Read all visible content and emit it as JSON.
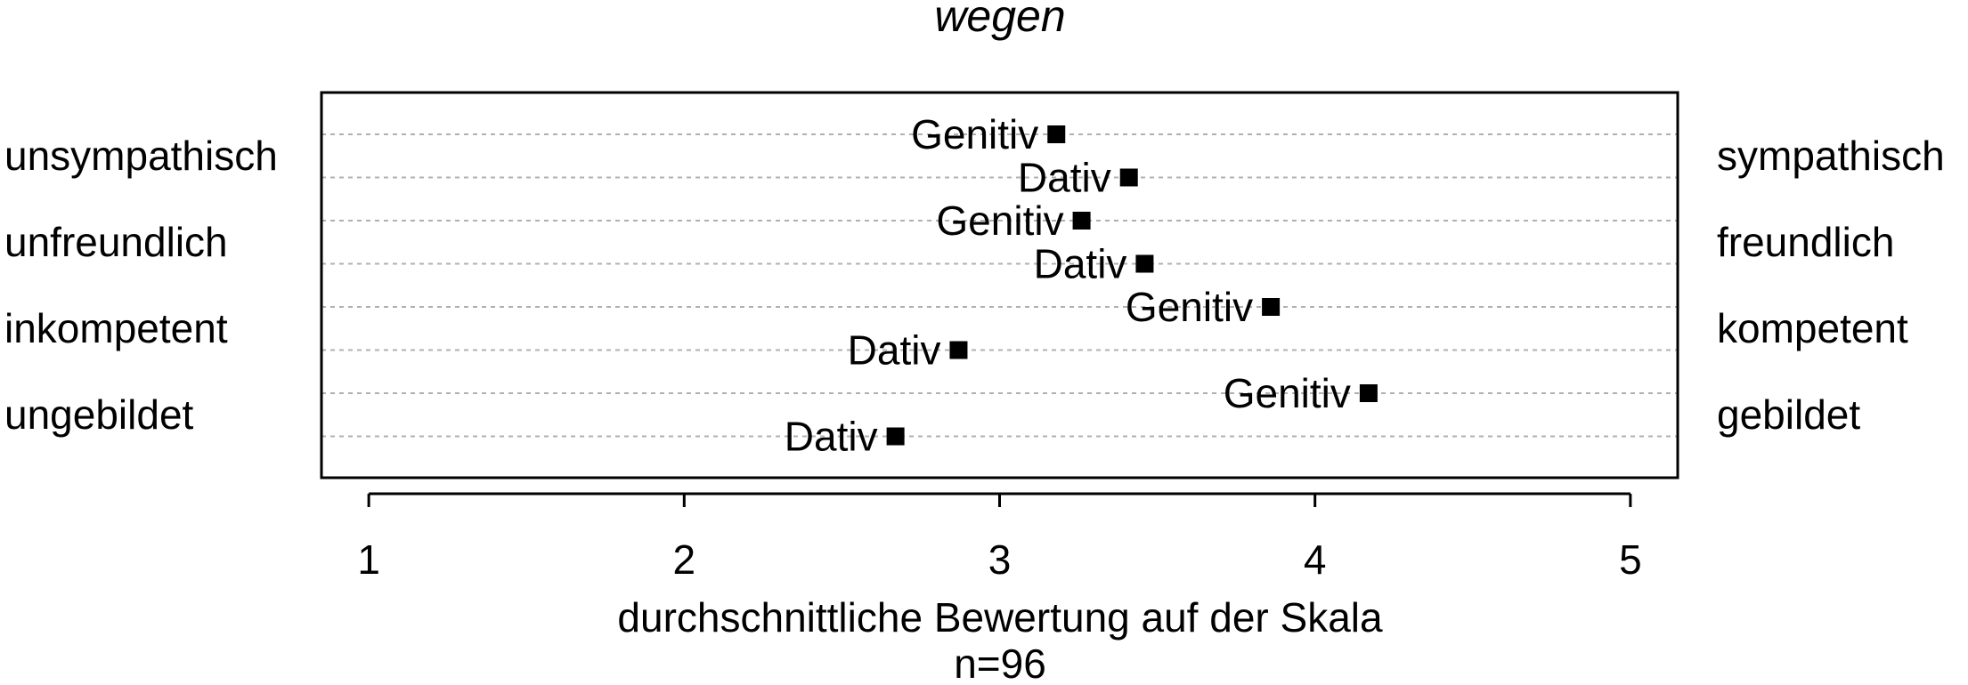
{
  "chart_data": {
    "type": "scatter",
    "title": "wegen",
    "xlabel": "durchschnittliche Bewertung auf der Skala",
    "note": "n=96",
    "xlim": [
      0.85,
      5.15
    ],
    "xticks": [
      1,
      2,
      3,
      4,
      5
    ],
    "grid": "horizontal dotted",
    "rows": [
      {
        "label": "Genitiv",
        "value": 3.18
      },
      {
        "label": "Dativ",
        "value": 3.41
      },
      {
        "label": "Genitiv",
        "value": 3.26
      },
      {
        "label": "Dativ",
        "value": 3.46
      },
      {
        "label": "Genitiv",
        "value": 3.86
      },
      {
        "label": "Dativ",
        "value": 2.87
      },
      {
        "label": "Genitiv",
        "value": 4.17
      },
      {
        "label": "Dativ",
        "value": 2.67
      }
    ],
    "scales": [
      {
        "left": "unsympathisch",
        "right": "sympathisch"
      },
      {
        "left": "unfreundlich",
        "right": "freundlich"
      },
      {
        "left": "inkompetent",
        "right": "kompetent"
      },
      {
        "left": "ungebildet",
        "right": "gebildet"
      }
    ],
    "marker_color": "#000000"
  }
}
